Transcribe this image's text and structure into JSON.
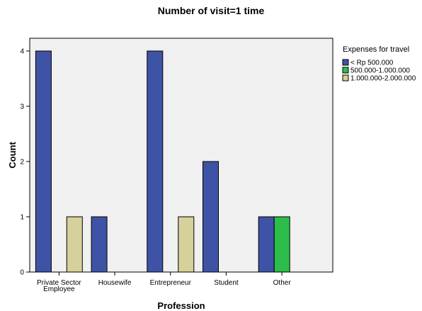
{
  "chart_data": {
    "type": "bar",
    "title": "Number of visit=1 time",
    "xlabel": "Profession",
    "ylabel": "Count",
    "categories": [
      [
        "Private Sector",
        "Employee"
      ],
      [
        "Housewife"
      ],
      [
        "Entrepreneur"
      ],
      [
        "Student"
      ],
      [
        "Other"
      ]
    ],
    "series": [
      {
        "name": "< Rp 500.000",
        "color": "#3f53a6",
        "values": [
          4,
          1,
          4,
          2,
          1
        ]
      },
      {
        "name": "500.000-1.000.000",
        "color": "#2cbd4a",
        "values": [
          0,
          0,
          0,
          0,
          1
        ]
      },
      {
        "name": "1.000.000-2.000.000",
        "color": "#d6d19b",
        "values": [
          1,
          0,
          1,
          0,
          0
        ]
      }
    ],
    "ylim": [
      0,
      4
    ],
    "yticks": [
      0,
      1,
      2,
      3,
      4
    ],
    "legend": {
      "title": "Expenses for travel",
      "placement": "right"
    },
    "grid": false,
    "colors": {
      "plot_background": "#f0f0f0",
      "bar_outline": "#000000"
    }
  }
}
